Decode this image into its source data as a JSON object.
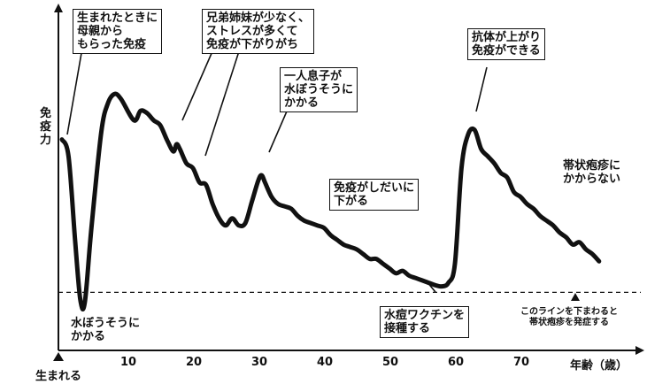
{
  "chart_data": {
    "type": "line",
    "ylabel": "免\n疫\n力",
    "xlabel": "年齢（歳）",
    "x_origin_label": "生まれる",
    "xlim": [
      0,
      85
    ],
    "ylim": [
      0,
      100
    ],
    "xticks": [
      10,
      20,
      30,
      40,
      50,
      60,
      70
    ],
    "threshold": {
      "y": 8,
      "style": "dashed",
      "label": "このラインを下まわると\n帯状疱疹を発症する"
    },
    "series": [
      {
        "x": [
          0,
          1,
          2,
          2.8,
          3.5,
          4.5,
          6,
          7,
          8,
          9,
          11,
          12,
          13,
          14,
          15,
          16,
          17,
          17.5,
          18,
          19,
          20,
          21,
          22,
          23,
          24,
          25,
          26,
          27,
          28,
          29,
          30,
          30.5,
          31,
          32,
          33,
          34,
          35,
          36,
          37,
          38,
          39,
          40,
          41,
          42,
          43,
          44,
          45,
          46,
          47,
          48,
          49,
          50,
          51,
          52,
          53,
          54,
          55,
          56,
          57,
          58,
          59,
          60,
          61,
          62,
          63,
          64,
          65,
          66,
          67,
          68,
          69,
          70,
          71,
          72,
          73,
          74,
          75,
          76,
          77,
          78,
          79,
          80,
          81,
          82
        ],
        "y": [
          72,
          65,
          30,
          5,
          4,
          35,
          75,
          87,
          91,
          89,
          80,
          84,
          83,
          80,
          78,
          72,
          67,
          70,
          68,
          62,
          60,
          54,
          53,
          45,
          39,
          36,
          39,
          36,
          37,
          46,
          55,
          57,
          54,
          48,
          45,
          44,
          43,
          40,
          38,
          37,
          36,
          35,
          32,
          30,
          28,
          27,
          26,
          24,
          22,
          22,
          20,
          18,
          16,
          17,
          15,
          14,
          13,
          12,
          11,
          10.5,
          12,
          20,
          60,
          74,
          76,
          68,
          65,
          62,
          58,
          56,
          50,
          48,
          45,
          43,
          40,
          38,
          36,
          33,
          31,
          28,
          29,
          26,
          24,
          21
        ]
      }
    ],
    "annotations": [
      {
        "text": "生まれたときに\n母親から\nもらった免疫",
        "boxed": true
      },
      {
        "text": "兄弟姉妹が少なく、\nストレスが多くて\n免疫が下がりがち",
        "boxed": true
      },
      {
        "text": "一人息子が\n水ぼうそうに\nかかる",
        "boxed": true
      },
      {
        "text": "免疫がしだいに\n下がる",
        "boxed": true
      },
      {
        "text": "抗体が上がり\n免疫ができる",
        "boxed": true
      },
      {
        "text": "帯状疱疹に\nかからない",
        "boxed": false
      },
      {
        "text": "水ぼうそうに\nかかる",
        "boxed": false
      },
      {
        "text": "水痘ワクチンを\n接種する",
        "boxed": true
      }
    ]
  }
}
